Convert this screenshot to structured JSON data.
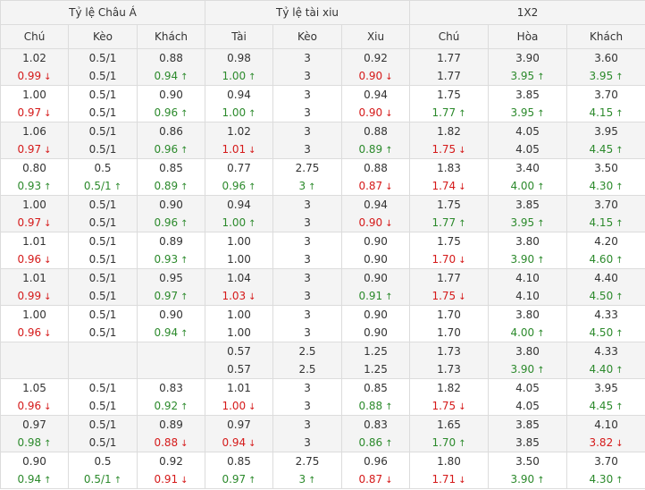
{
  "groups": [
    "Tỷ lệ Châu Á",
    "Tỷ lệ tài xiu",
    "1X2"
  ],
  "columns": [
    "Chú",
    "Kèo",
    "Khách",
    "Tài",
    "Kèo",
    "Xiu",
    "Chú",
    "Hòa",
    "Khách"
  ],
  "rows": [
    {
      "cells": [
        [
          {
            "v": "1.02",
            "d": ""
          },
          {
            "v": "0.99",
            "d": "down"
          }
        ],
        [
          {
            "v": "0.5/1",
            "d": ""
          },
          {
            "v": "0.5/1",
            "d": ""
          }
        ],
        [
          {
            "v": "0.88",
            "d": ""
          },
          {
            "v": "0.94",
            "d": "up"
          }
        ],
        [
          {
            "v": "0.98",
            "d": ""
          },
          {
            "v": "1.00",
            "d": "up"
          }
        ],
        [
          {
            "v": "3",
            "d": ""
          },
          {
            "v": "3",
            "d": ""
          }
        ],
        [
          {
            "v": "0.92",
            "d": ""
          },
          {
            "v": "0.90",
            "d": "down"
          }
        ],
        [
          {
            "v": "1.77",
            "d": ""
          },
          {
            "v": "1.77",
            "d": ""
          }
        ],
        [
          {
            "v": "3.90",
            "d": ""
          },
          {
            "v": "3.95",
            "d": "up"
          }
        ],
        [
          {
            "v": "3.60",
            "d": ""
          },
          {
            "v": "3.95",
            "d": "up"
          }
        ]
      ]
    },
    {
      "cells": [
        [
          {
            "v": "1.00",
            "d": ""
          },
          {
            "v": "0.97",
            "d": "down"
          }
        ],
        [
          {
            "v": "0.5/1",
            "d": ""
          },
          {
            "v": "0.5/1",
            "d": ""
          }
        ],
        [
          {
            "v": "0.90",
            "d": ""
          },
          {
            "v": "0.96",
            "d": "up"
          }
        ],
        [
          {
            "v": "0.94",
            "d": ""
          },
          {
            "v": "1.00",
            "d": "up"
          }
        ],
        [
          {
            "v": "3",
            "d": ""
          },
          {
            "v": "3",
            "d": ""
          }
        ],
        [
          {
            "v": "0.94",
            "d": ""
          },
          {
            "v": "0.90",
            "d": "down"
          }
        ],
        [
          {
            "v": "1.75",
            "d": ""
          },
          {
            "v": "1.77",
            "d": "up"
          }
        ],
        [
          {
            "v": "3.85",
            "d": ""
          },
          {
            "v": "3.95",
            "d": "up"
          }
        ],
        [
          {
            "v": "3.70",
            "d": ""
          },
          {
            "v": "4.15",
            "d": "up"
          }
        ]
      ]
    },
    {
      "cells": [
        [
          {
            "v": "1.06",
            "d": ""
          },
          {
            "v": "0.97",
            "d": "down"
          }
        ],
        [
          {
            "v": "0.5/1",
            "d": ""
          },
          {
            "v": "0.5/1",
            "d": ""
          }
        ],
        [
          {
            "v": "0.86",
            "d": ""
          },
          {
            "v": "0.96",
            "d": "up"
          }
        ],
        [
          {
            "v": "1.02",
            "d": ""
          },
          {
            "v": "1.01",
            "d": "down"
          }
        ],
        [
          {
            "v": "3",
            "d": ""
          },
          {
            "v": "3",
            "d": ""
          }
        ],
        [
          {
            "v": "0.88",
            "d": ""
          },
          {
            "v": "0.89",
            "d": "up"
          }
        ],
        [
          {
            "v": "1.82",
            "d": ""
          },
          {
            "v": "1.75",
            "d": "down"
          }
        ],
        [
          {
            "v": "4.05",
            "d": ""
          },
          {
            "v": "4.05",
            "d": ""
          }
        ],
        [
          {
            "v": "3.95",
            "d": ""
          },
          {
            "v": "4.45",
            "d": "up"
          }
        ]
      ]
    },
    {
      "cells": [
        [
          {
            "v": "0.80",
            "d": ""
          },
          {
            "v": "0.93",
            "d": "up"
          }
        ],
        [
          {
            "v": "0.5",
            "d": ""
          },
          {
            "v": "0.5/1",
            "d": "up"
          }
        ],
        [
          {
            "v": "0.85",
            "d": ""
          },
          {
            "v": "0.89",
            "d": "up"
          }
        ],
        [
          {
            "v": "0.77",
            "d": ""
          },
          {
            "v": "0.96",
            "d": "up"
          }
        ],
        [
          {
            "v": "2.75",
            "d": ""
          },
          {
            "v": "3",
            "d": "up"
          }
        ],
        [
          {
            "v": "0.88",
            "d": ""
          },
          {
            "v": "0.87",
            "d": "down"
          }
        ],
        [
          {
            "v": "1.83",
            "d": ""
          },
          {
            "v": "1.74",
            "d": "down"
          }
        ],
        [
          {
            "v": "3.40",
            "d": ""
          },
          {
            "v": "4.00",
            "d": "up"
          }
        ],
        [
          {
            "v": "3.50",
            "d": ""
          },
          {
            "v": "4.30",
            "d": "up"
          }
        ]
      ]
    },
    {
      "cells": [
        [
          {
            "v": "1.00",
            "d": ""
          },
          {
            "v": "0.97",
            "d": "down"
          }
        ],
        [
          {
            "v": "0.5/1",
            "d": ""
          },
          {
            "v": "0.5/1",
            "d": ""
          }
        ],
        [
          {
            "v": "0.90",
            "d": ""
          },
          {
            "v": "0.96",
            "d": "up"
          }
        ],
        [
          {
            "v": "0.94",
            "d": ""
          },
          {
            "v": "1.00",
            "d": "up"
          }
        ],
        [
          {
            "v": "3",
            "d": ""
          },
          {
            "v": "3",
            "d": ""
          }
        ],
        [
          {
            "v": "0.94",
            "d": ""
          },
          {
            "v": "0.90",
            "d": "down"
          }
        ],
        [
          {
            "v": "1.75",
            "d": ""
          },
          {
            "v": "1.77",
            "d": "up"
          }
        ],
        [
          {
            "v": "3.85",
            "d": ""
          },
          {
            "v": "3.95",
            "d": "up"
          }
        ],
        [
          {
            "v": "3.70",
            "d": ""
          },
          {
            "v": "4.15",
            "d": "up"
          }
        ]
      ]
    },
    {
      "cells": [
        [
          {
            "v": "1.01",
            "d": ""
          },
          {
            "v": "0.96",
            "d": "down"
          }
        ],
        [
          {
            "v": "0.5/1",
            "d": ""
          },
          {
            "v": "0.5/1",
            "d": ""
          }
        ],
        [
          {
            "v": "0.89",
            "d": ""
          },
          {
            "v": "0.93",
            "d": "up"
          }
        ],
        [
          {
            "v": "1.00",
            "d": ""
          },
          {
            "v": "1.00",
            "d": ""
          }
        ],
        [
          {
            "v": "3",
            "d": ""
          },
          {
            "v": "3",
            "d": ""
          }
        ],
        [
          {
            "v": "0.90",
            "d": ""
          },
          {
            "v": "0.90",
            "d": ""
          }
        ],
        [
          {
            "v": "1.75",
            "d": ""
          },
          {
            "v": "1.70",
            "d": "down"
          }
        ],
        [
          {
            "v": "3.80",
            "d": ""
          },
          {
            "v": "3.90",
            "d": "up"
          }
        ],
        [
          {
            "v": "4.20",
            "d": ""
          },
          {
            "v": "4.60",
            "d": "up"
          }
        ]
      ]
    },
    {
      "cells": [
        [
          {
            "v": "1.01",
            "d": ""
          },
          {
            "v": "0.99",
            "d": "down"
          }
        ],
        [
          {
            "v": "0.5/1",
            "d": ""
          },
          {
            "v": "0.5/1",
            "d": ""
          }
        ],
        [
          {
            "v": "0.95",
            "d": ""
          },
          {
            "v": "0.97",
            "d": "up"
          }
        ],
        [
          {
            "v": "1.04",
            "d": ""
          },
          {
            "v": "1.03",
            "d": "down"
          }
        ],
        [
          {
            "v": "3",
            "d": ""
          },
          {
            "v": "3",
            "d": ""
          }
        ],
        [
          {
            "v": "0.90",
            "d": ""
          },
          {
            "v": "0.91",
            "d": "up"
          }
        ],
        [
          {
            "v": "1.77",
            "d": ""
          },
          {
            "v": "1.75",
            "d": "down"
          }
        ],
        [
          {
            "v": "4.10",
            "d": ""
          },
          {
            "v": "4.10",
            "d": ""
          }
        ],
        [
          {
            "v": "4.40",
            "d": ""
          },
          {
            "v": "4.50",
            "d": "up"
          }
        ]
      ]
    },
    {
      "cells": [
        [
          {
            "v": "1.00",
            "d": ""
          },
          {
            "v": "0.96",
            "d": "down"
          }
        ],
        [
          {
            "v": "0.5/1",
            "d": ""
          },
          {
            "v": "0.5/1",
            "d": ""
          }
        ],
        [
          {
            "v": "0.90",
            "d": ""
          },
          {
            "v": "0.94",
            "d": "up"
          }
        ],
        [
          {
            "v": "1.00",
            "d": ""
          },
          {
            "v": "1.00",
            "d": ""
          }
        ],
        [
          {
            "v": "3",
            "d": ""
          },
          {
            "v": "3",
            "d": ""
          }
        ],
        [
          {
            "v": "0.90",
            "d": ""
          },
          {
            "v": "0.90",
            "d": ""
          }
        ],
        [
          {
            "v": "1.70",
            "d": ""
          },
          {
            "v": "1.70",
            "d": ""
          }
        ],
        [
          {
            "v": "3.80",
            "d": ""
          },
          {
            "v": "4.00",
            "d": "up"
          }
        ],
        [
          {
            "v": "4.33",
            "d": ""
          },
          {
            "v": "4.50",
            "d": "up"
          }
        ]
      ]
    },
    {
      "cells": [
        [],
        [],
        [],
        [
          {
            "v": "0.57",
            "d": ""
          },
          {
            "v": "0.57",
            "d": ""
          }
        ],
        [
          {
            "v": "2.5",
            "d": ""
          },
          {
            "v": "2.5",
            "d": ""
          }
        ],
        [
          {
            "v": "1.25",
            "d": ""
          },
          {
            "v": "1.25",
            "d": ""
          }
        ],
        [
          {
            "v": "1.73",
            "d": ""
          },
          {
            "v": "1.73",
            "d": ""
          }
        ],
        [
          {
            "v": "3.80",
            "d": ""
          },
          {
            "v": "3.90",
            "d": "up"
          }
        ],
        [
          {
            "v": "4.33",
            "d": ""
          },
          {
            "v": "4.40",
            "d": "up"
          }
        ]
      ]
    },
    {
      "cells": [
        [
          {
            "v": "1.05",
            "d": ""
          },
          {
            "v": "0.96",
            "d": "down"
          }
        ],
        [
          {
            "v": "0.5/1",
            "d": ""
          },
          {
            "v": "0.5/1",
            "d": ""
          }
        ],
        [
          {
            "v": "0.83",
            "d": ""
          },
          {
            "v": "0.92",
            "d": "up"
          }
        ],
        [
          {
            "v": "1.01",
            "d": ""
          },
          {
            "v": "1.00",
            "d": "down"
          }
        ],
        [
          {
            "v": "3",
            "d": ""
          },
          {
            "v": "3",
            "d": ""
          }
        ],
        [
          {
            "v": "0.85",
            "d": ""
          },
          {
            "v": "0.88",
            "d": "up"
          }
        ],
        [
          {
            "v": "1.82",
            "d": ""
          },
          {
            "v": "1.75",
            "d": "down"
          }
        ],
        [
          {
            "v": "4.05",
            "d": ""
          },
          {
            "v": "4.05",
            "d": ""
          }
        ],
        [
          {
            "v": "3.95",
            "d": ""
          },
          {
            "v": "4.45",
            "d": "up"
          }
        ]
      ]
    },
    {
      "cells": [
        [
          {
            "v": "0.97",
            "d": ""
          },
          {
            "v": "0.98",
            "d": "up"
          }
        ],
        [
          {
            "v": "0.5/1",
            "d": ""
          },
          {
            "v": "0.5/1",
            "d": ""
          }
        ],
        [
          {
            "v": "0.89",
            "d": ""
          },
          {
            "v": "0.88",
            "d": "down"
          }
        ],
        [
          {
            "v": "0.97",
            "d": ""
          },
          {
            "v": "0.94",
            "d": "down"
          }
        ],
        [
          {
            "v": "3",
            "d": ""
          },
          {
            "v": "3",
            "d": ""
          }
        ],
        [
          {
            "v": "0.83",
            "d": ""
          },
          {
            "v": "0.86",
            "d": "up"
          }
        ],
        [
          {
            "v": "1.65",
            "d": ""
          },
          {
            "v": "1.70",
            "d": "up"
          }
        ],
        [
          {
            "v": "3.85",
            "d": ""
          },
          {
            "v": "3.85",
            "d": ""
          }
        ],
        [
          {
            "v": "4.10",
            "d": ""
          },
          {
            "v": "3.82",
            "d": "down"
          }
        ]
      ]
    },
    {
      "cells": [
        [
          {
            "v": "0.90",
            "d": ""
          },
          {
            "v": "0.94",
            "d": "up"
          }
        ],
        [
          {
            "v": "0.5",
            "d": ""
          },
          {
            "v": "0.5/1",
            "d": "up"
          }
        ],
        [
          {
            "v": "0.92",
            "d": ""
          },
          {
            "v": "0.91",
            "d": "down"
          }
        ],
        [
          {
            "v": "0.85",
            "d": ""
          },
          {
            "v": "0.97",
            "d": "up"
          }
        ],
        [
          {
            "v": "2.75",
            "d": ""
          },
          {
            "v": "3",
            "d": "up"
          }
        ],
        [
          {
            "v": "0.96",
            "d": ""
          },
          {
            "v": "0.87",
            "d": "down"
          }
        ],
        [
          {
            "v": "1.80",
            "d": ""
          },
          {
            "v": "1.71",
            "d": "down"
          }
        ],
        [
          {
            "v": "3.50",
            "d": ""
          },
          {
            "v": "3.90",
            "d": "up"
          }
        ],
        [
          {
            "v": "3.70",
            "d": ""
          },
          {
            "v": "4.30",
            "d": "up"
          }
        ]
      ]
    }
  ]
}
